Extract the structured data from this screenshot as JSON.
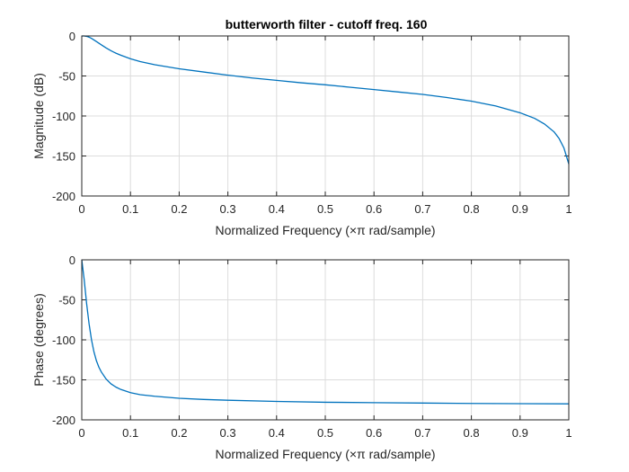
{
  "figure_background": "#ffffff",
  "chart_data": [
    {
      "type": "line",
      "title": "butterworth filter - cutoff freq. 160",
      "xlabel": "Normalized Frequency  (×π rad/sample)",
      "ylabel": "Magnitude (dB)",
      "xlim": [
        0,
        1
      ],
      "ylim": [
        -200,
        0
      ],
      "xticks": [
        "0",
        "0.1",
        "0.2",
        "0.3",
        "0.4",
        "0.5",
        "0.6",
        "0.7",
        "0.8",
        "0.9",
        "1"
      ],
      "yticks": [
        "0",
        "-50",
        "-100",
        "-150",
        "-200"
      ],
      "grid": true,
      "series": [
        {
          "color": "#0072bd",
          "x": [
            0,
            0.005,
            0.01,
            0.015,
            0.02,
            0.025,
            0.03,
            0.04,
            0.05,
            0.06,
            0.07,
            0.08,
            0.1,
            0.12,
            0.15,
            0.2,
            0.25,
            0.3,
            0.35,
            0.4,
            0.45,
            0.5,
            0.55,
            0.6,
            0.65,
            0.7,
            0.75,
            0.8,
            0.85,
            0.9,
            0.93,
            0.95,
            0.97,
            0.98,
            0.99,
            0.995,
            1.0
          ],
          "y": [
            0,
            0,
            -0.5,
            -1.5,
            -3,
            -5,
            -7,
            -11,
            -15,
            -18.5,
            -21.5,
            -24,
            -28.5,
            -32,
            -36,
            -41,
            -45,
            -49,
            -52.5,
            -55.5,
            -58.5,
            -61,
            -64,
            -67,
            -70,
            -73,
            -77,
            -81.5,
            -87.5,
            -96,
            -103,
            -110,
            -120,
            -128,
            -140,
            -150,
            -160
          ]
        }
      ]
    },
    {
      "type": "line",
      "title": "",
      "xlabel": "Normalized Frequency  (×π rad/sample)",
      "ylabel": "Phase (degrees)",
      "xlim": [
        0,
        1
      ],
      "ylim": [
        -200,
        0
      ],
      "xticks": [
        "0",
        "0.1",
        "0.2",
        "0.3",
        "0.4",
        "0.5",
        "0.6",
        "0.7",
        "0.8",
        "0.9",
        "1"
      ],
      "yticks": [
        "0",
        "-50",
        "-100",
        "-150",
        "-200"
      ],
      "grid": true,
      "series": [
        {
          "color": "#0072bd",
          "x": [
            0,
            0.005,
            0.01,
            0.015,
            0.02,
            0.025,
            0.03,
            0.035,
            0.04,
            0.05,
            0.06,
            0.07,
            0.08,
            0.1,
            0.12,
            0.15,
            0.2,
            0.25,
            0.3,
            0.4,
            0.5,
            0.6,
            0.7,
            0.8,
            0.9,
            1.0
          ],
          "y": [
            0,
            -25,
            -55,
            -80,
            -100,
            -115,
            -126,
            -134,
            -140,
            -149,
            -155,
            -159,
            -162,
            -166,
            -168.5,
            -170.5,
            -173,
            -174.5,
            -175.5,
            -177,
            -178,
            -178.5,
            -179,
            -179.5,
            -179.8,
            -180
          ]
        }
      ]
    }
  ]
}
